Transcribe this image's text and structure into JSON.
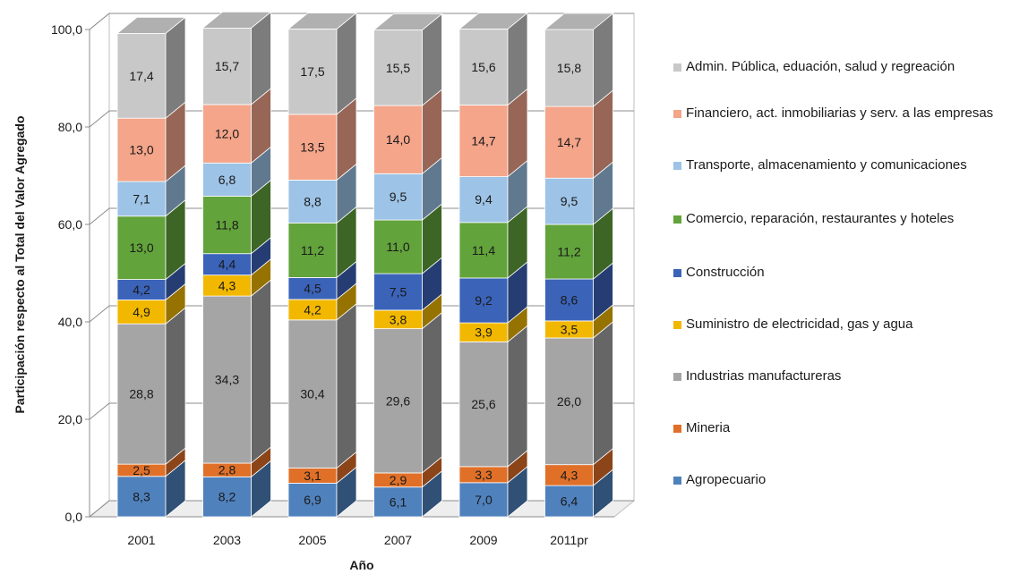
{
  "chart_data": {
    "type": "bar",
    "stacked": true,
    "three_d": true,
    "categories": [
      "2001",
      "2003",
      "2005",
      "2007",
      "2009",
      "2011pr"
    ],
    "xlabel": "Año",
    "ylabel": "Participación respecto al Total del Valor Agregado",
    "ylim": [
      0,
      100
    ],
    "yticks": [
      "0,0",
      "20,0",
      "40,0",
      "60,0",
      "80,0",
      "100,0"
    ],
    "gridlines": true,
    "legend_position": "right",
    "series": [
      {
        "name": "Agropecuario",
        "color": "#4f81bd",
        "values": [
          8.3,
          8.2,
          6.9,
          6.1,
          7.0,
          6.4
        ],
        "labels": [
          "8,3",
          "8,2",
          "6,9",
          "6,1",
          "7,0",
          "6,4"
        ]
      },
      {
        "name": "Mineria",
        "color": "#e07028",
        "values": [
          2.5,
          2.8,
          3.1,
          2.9,
          3.3,
          4.3
        ],
        "labels": [
          "2,5",
          "2,8",
          "3,1",
          "2,9",
          "3,3",
          "4,3"
        ]
      },
      {
        "name": "Industrias manufactureras",
        "color": "#a5a5a5",
        "values": [
          28.8,
          34.3,
          30.4,
          29.6,
          25.6,
          26.0
        ],
        "labels": [
          "28,8",
          "34,3",
          "30,4",
          "29,6",
          "25,6",
          "26,0"
        ]
      },
      {
        "name": "Suministro de electricidad, gas y agua",
        "color": "#f2b800",
        "values": [
          4.9,
          4.3,
          4.2,
          3.8,
          3.9,
          3.5
        ],
        "labels": [
          "4,9",
          "4,3",
          "4,2",
          "3,8",
          "3,9",
          "3,5"
        ]
      },
      {
        "name": "Construcción",
        "color": "#3b63b8",
        "values": [
          4.2,
          4.4,
          4.5,
          7.5,
          9.2,
          8.6
        ],
        "labels": [
          "4,2",
          "4,4",
          "4,5",
          "7,5",
          "9,2",
          "8,6"
        ]
      },
      {
        "name": "Comercio, reparación, restaurantes y hoteles",
        "color": "#62a33b",
        "values": [
          13.0,
          11.8,
          11.2,
          11.0,
          11.4,
          11.2
        ],
        "labels": [
          "13,0",
          "11,8",
          "11,2",
          "11,0",
          "11,4",
          "11,2"
        ]
      },
      {
        "name": "Transporte, almacenamiento y comunicaciones",
        "color": "#9dc3e6",
        "values": [
          7.1,
          6.8,
          8.8,
          9.5,
          9.4,
          9.5
        ],
        "labels": [
          "7,1",
          "6,8",
          "8,8",
          "9,5",
          "9,4",
          "9,5"
        ]
      },
      {
        "name": "Financiero, act. inmobiliarias y serv. a las empresas",
        "color": "#f4a58a",
        "values": [
          13.0,
          12.0,
          13.5,
          14.0,
          14.7,
          14.7
        ],
        "labels": [
          "13,0",
          "12,0",
          "13,5",
          "14,0",
          "14,7",
          "14,7"
        ]
      },
      {
        "name": "Admin. Pública, eduación, salud y regreación",
        "color": "#c8c8c8",
        "values": [
          17.4,
          15.7,
          17.5,
          15.5,
          15.6,
          15.8
        ],
        "labels": [
          "17,4",
          "15,7",
          "17,5",
          "15,5",
          "15,6",
          "15,8"
        ]
      }
    ]
  }
}
